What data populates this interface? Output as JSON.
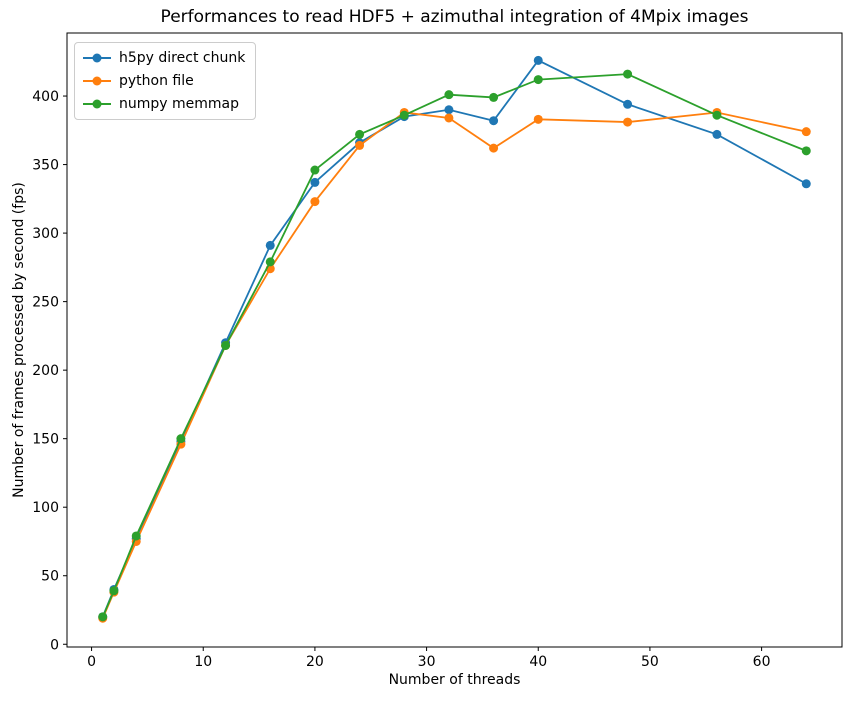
{
  "chart_data": {
    "type": "line",
    "title": "Performances to read HDF5 + azimuthal integration of 4Mpix images",
    "xlabel": "Number of threads",
    "ylabel": "Number of frames processed by second (fps)",
    "x": [
      1,
      2,
      4,
      8,
      12,
      16,
      20,
      24,
      28,
      32,
      36,
      40,
      48,
      56,
      64
    ],
    "series": [
      {
        "name": "h5py direct chunk",
        "color": "#1f77b4",
        "values": [
          20,
          40,
          77,
          148,
          220,
          291,
          337,
          366,
          385,
          390,
          382,
          426,
          394,
          372,
          336
        ]
      },
      {
        "name": "python file",
        "color": "#ff7f0e",
        "values": [
          19,
          38,
          75,
          146,
          218,
          274,
          323,
          364,
          388,
          384,
          362,
          383,
          381,
          388,
          374
        ]
      },
      {
        "name": "numpy memmap",
        "color": "#2ca02c",
        "values": [
          20,
          39,
          79,
          150,
          218,
          279,
          346,
          372,
          386,
          401,
          399,
          412,
          416,
          386,
          360
        ]
      }
    ],
    "xticks": [
      0,
      10,
      20,
      30,
      40,
      50,
      60
    ],
    "yticks": [
      0,
      50,
      100,
      150,
      200,
      250,
      300,
      350,
      400
    ],
    "xlim": [
      -2.2,
      67.2
    ],
    "ylim": [
      -2,
      446
    ],
    "grid": false,
    "legend_position": "upper left",
    "marker": "circle",
    "background": "#ffffff"
  }
}
